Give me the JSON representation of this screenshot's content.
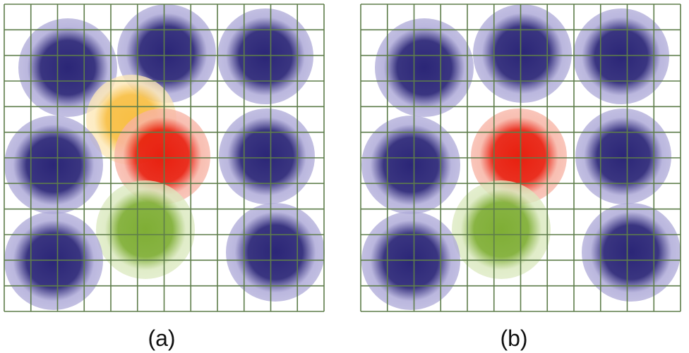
{
  "colors": {
    "grid": "#5e7d4a",
    "blob_blue": "#2b2677",
    "blob_blue_halo": "#aeaad8",
    "blob_red": "#e8200f",
    "blob_red_halo": "#f7b3a4",
    "blob_green": "#7fae35",
    "blob_green_halo": "#dbe9bf",
    "blob_orange": "#f8bf45",
    "blob_orange_halo": "#fde8b8",
    "background": "#ffffff"
  },
  "panels": [
    {
      "label": "(a)",
      "blobs": [
        {
          "name": "blob-blue-top-left",
          "color": "blue"
        },
        {
          "name": "blob-blue-top-middle",
          "color": "blue"
        },
        {
          "name": "blob-blue-top-right",
          "color": "blue"
        },
        {
          "name": "blob-orange-center-left",
          "color": "orange"
        },
        {
          "name": "blob-blue-middle-left",
          "color": "blue"
        },
        {
          "name": "blob-red-center",
          "color": "red"
        },
        {
          "name": "blob-blue-middle-right",
          "color": "blue"
        },
        {
          "name": "blob-green-bottom-middle",
          "color": "green"
        },
        {
          "name": "blob-blue-bottom-left",
          "color": "blue"
        },
        {
          "name": "blob-blue-bottom-right",
          "color": "blue"
        }
      ]
    },
    {
      "label": "(b)",
      "blobs": [
        {
          "name": "blob-blue-top-left",
          "color": "blue"
        },
        {
          "name": "blob-blue-top-middle",
          "color": "blue"
        },
        {
          "name": "blob-blue-top-right",
          "color": "blue"
        },
        {
          "name": "blob-blue-middle-left",
          "color": "blue"
        },
        {
          "name": "blob-red-center",
          "color": "red"
        },
        {
          "name": "blob-blue-middle-right",
          "color": "blue"
        },
        {
          "name": "blob-green-bottom-middle",
          "color": "green"
        },
        {
          "name": "blob-blue-bottom-left",
          "color": "blue"
        },
        {
          "name": "blob-blue-bottom-right",
          "color": "blue"
        }
      ]
    }
  ]
}
